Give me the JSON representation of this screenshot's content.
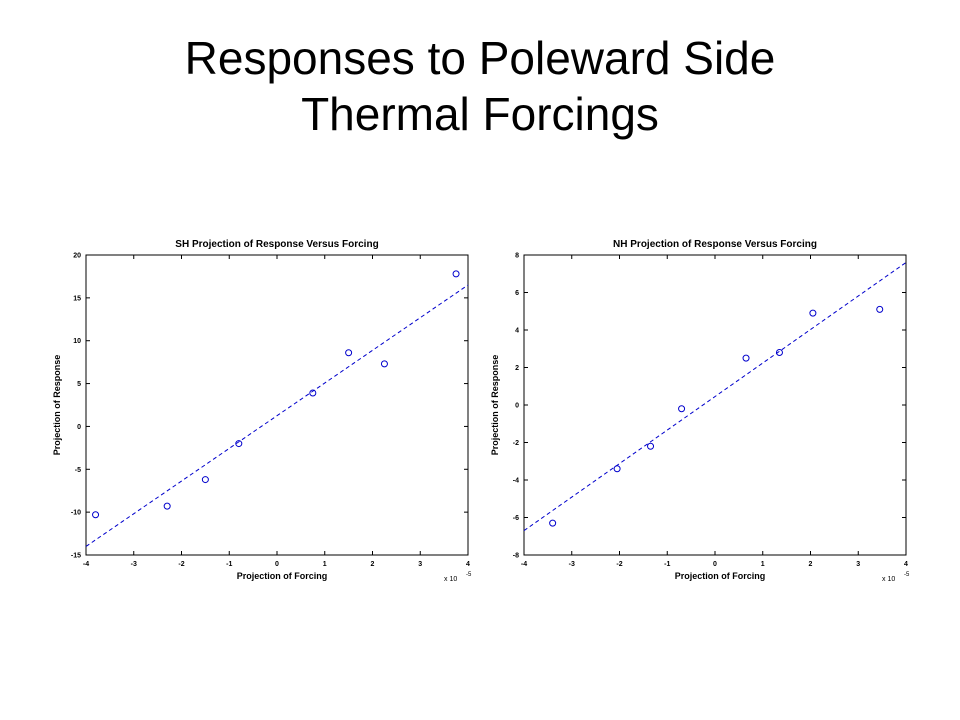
{
  "slide": {
    "title_line1": "Responses to Poleward Side",
    "title_line2": "Thermal Forcings"
  },
  "colors": {
    "marker": "#0000cc",
    "fit_line": "#0000cc",
    "axes": "#000000"
  },
  "chart_data": [
    {
      "type": "scatter",
      "title": "SH Projection of Response Versus Forcing",
      "xlabel": "Projection of Forcing",
      "ylabel": "Projection of Response",
      "x_multiplier": "x 10",
      "x_multiplier_exp": "-5",
      "xlim": [
        -4,
        4
      ],
      "ylim": [
        -15,
        20
      ],
      "xticks": [
        -4,
        -3,
        -2,
        -1,
        0,
        1,
        2,
        3,
        4
      ],
      "yticks": [
        -15,
        -10,
        -5,
        0,
        5,
        10,
        15,
        20
      ],
      "grid": false,
      "points": {
        "x": [
          -3.8,
          -2.3,
          -1.5,
          -0.8,
          0.75,
          1.5,
          2.25,
          3.75
        ],
        "y": [
          -10.3,
          -9.3,
          -6.2,
          -2.0,
          3.9,
          8.6,
          7.3,
          17.8
        ]
      },
      "fit_line": {
        "style": "dashed",
        "x": [
          -4,
          4
        ],
        "y": [
          -14,
          16.5
        ]
      }
    },
    {
      "type": "scatter",
      "title": "NH Projection of Response Versus Forcing",
      "xlabel": "Projection of Forcing",
      "ylabel": "Projection of Response",
      "x_multiplier": "x 10",
      "x_multiplier_exp": "-5",
      "xlim": [
        -4,
        4
      ],
      "ylim": [
        -8,
        8
      ],
      "xticks": [
        -4,
        -3,
        -2,
        -1,
        0,
        1,
        2,
        3,
        4
      ],
      "yticks": [
        -8,
        -6,
        -4,
        -2,
        0,
        2,
        4,
        6,
        8
      ],
      "grid": false,
      "points": {
        "x": [
          -3.4,
          -2.05,
          -1.35,
          -0.7,
          0.65,
          1.35,
          2.05,
          3.45
        ],
        "y": [
          -6.3,
          -3.4,
          -2.2,
          -0.2,
          2.5,
          2.8,
          4.9,
          5.1
        ]
      },
      "fit_line": {
        "style": "dashed",
        "x": [
          -4,
          4
        ],
        "y": [
          -6.7,
          7.6
        ]
      }
    }
  ]
}
